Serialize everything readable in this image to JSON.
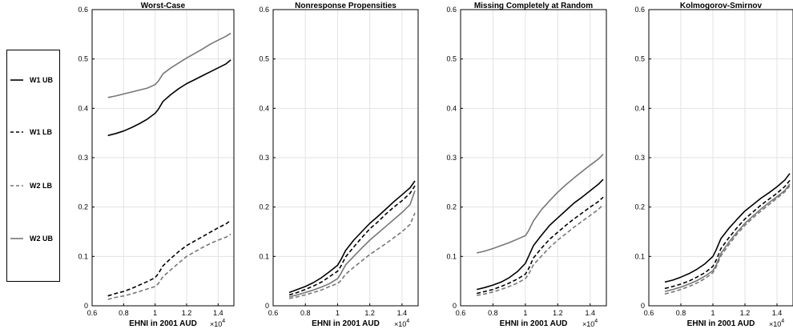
{
  "legend": {
    "entries": [
      {
        "label": "W1 UB",
        "color": "#000000",
        "dash": "solid"
      },
      {
        "label": "W1 LB",
        "color": "#000000",
        "dash": "dashed"
      },
      {
        "label": "W2 LB",
        "color": "#777777",
        "dash": "dashed"
      },
      {
        "label": "W2 UB",
        "color": "#777777",
        "dash": "solid"
      }
    ]
  },
  "chart_data": [
    {
      "type": "line",
      "title": "Worst-Case",
      "xlabel": "EHNI in 2001 AUD",
      "x_multiplier_base": "×10",
      "x_multiplier_exp": "4",
      "xlim": [
        0.6,
        1.5
      ],
      "ylim": [
        0,
        0.6
      ],
      "xticks": [
        0.6,
        0.8,
        1,
        1.2,
        1.4
      ],
      "yticks": [
        0,
        0.1,
        0.2,
        0.3,
        0.4,
        0.5,
        0.6
      ],
      "grid": true,
      "x": [
        0.7,
        0.75,
        0.8,
        0.85,
        0.9,
        0.95,
        1.0,
        1.02,
        1.05,
        1.1,
        1.15,
        1.2,
        1.25,
        1.3,
        1.35,
        1.4,
        1.45,
        1.48
      ],
      "series": [
        {
          "name": "W1 UB",
          "values": [
            0.345,
            0.349,
            0.354,
            0.361,
            0.369,
            0.378,
            0.39,
            0.398,
            0.414,
            0.428,
            0.44,
            0.45,
            0.458,
            0.466,
            0.474,
            0.482,
            0.49,
            0.498
          ]
        },
        {
          "name": "W1 LB",
          "values": [
            0.02,
            0.025,
            0.029,
            0.035,
            0.042,
            0.049,
            0.057,
            0.065,
            0.081,
            0.096,
            0.11,
            0.122,
            0.131,
            0.14,
            0.149,
            0.158,
            0.166,
            0.173
          ]
        },
        {
          "name": "W2 LB",
          "values": [
            0.013,
            0.017,
            0.02,
            0.024,
            0.029,
            0.034,
            0.039,
            0.045,
            0.059,
            0.073,
            0.087,
            0.1,
            0.109,
            0.118,
            0.126,
            0.133,
            0.139,
            0.145
          ]
        },
        {
          "name": "W2 UB",
          "values": [
            0.422,
            0.425,
            0.429,
            0.433,
            0.437,
            0.441,
            0.448,
            0.455,
            0.47,
            0.482,
            0.492,
            0.502,
            0.511,
            0.52,
            0.53,
            0.538,
            0.546,
            0.552
          ]
        }
      ]
    },
    {
      "type": "line",
      "title": "Nonresponse Propensities",
      "xlabel": "EHNI in 2001 AUD",
      "x_multiplier_base": "×10",
      "x_multiplier_exp": "4",
      "xlim": [
        0.6,
        1.5
      ],
      "ylim": [
        0,
        0.6
      ],
      "xticks": [
        0.6,
        0.8,
        1,
        1.2,
        1.4
      ],
      "yticks": [
        0,
        0.1,
        0.2,
        0.3,
        0.4,
        0.5,
        0.6
      ],
      "grid": true,
      "x": [
        0.7,
        0.75,
        0.8,
        0.85,
        0.9,
        0.95,
        1.0,
        1.02,
        1.05,
        1.1,
        1.15,
        1.2,
        1.25,
        1.3,
        1.35,
        1.4,
        1.45,
        1.48
      ],
      "series": [
        {
          "name": "W1 UB",
          "values": [
            0.027,
            0.033,
            0.039,
            0.047,
            0.057,
            0.069,
            0.082,
            0.093,
            0.112,
            0.133,
            0.15,
            0.167,
            0.181,
            0.196,
            0.211,
            0.225,
            0.239,
            0.253
          ]
        },
        {
          "name": "W1 LB",
          "values": [
            0.022,
            0.027,
            0.033,
            0.04,
            0.048,
            0.059,
            0.07,
            0.08,
            0.099,
            0.119,
            0.138,
            0.156,
            0.17,
            0.186,
            0.2,
            0.213,
            0.228,
            0.243
          ]
        },
        {
          "name": "W2 LB",
          "values": [
            0.015,
            0.018,
            0.022,
            0.027,
            0.032,
            0.039,
            0.045,
            0.051,
            0.064,
            0.078,
            0.091,
            0.104,
            0.115,
            0.126,
            0.138,
            0.15,
            0.165,
            0.188
          ]
        },
        {
          "name": "W2 UB",
          "values": [
            0.018,
            0.022,
            0.027,
            0.032,
            0.038,
            0.045,
            0.055,
            0.065,
            0.083,
            0.1,
            0.117,
            0.133,
            0.147,
            0.161,
            0.175,
            0.189,
            0.205,
            0.233
          ]
        }
      ]
    },
    {
      "type": "line",
      "title": "Missing Completely at Random",
      "xlabel": "EHNI in 2001 AUD",
      "x_multiplier_base": "×10",
      "x_multiplier_exp": "4",
      "xlim": [
        0.6,
        1.5
      ],
      "ylim": [
        0,
        0.6
      ],
      "xticks": [
        0.6,
        0.8,
        1,
        1.2,
        1.4
      ],
      "yticks": [
        0,
        0.1,
        0.2,
        0.3,
        0.4,
        0.5,
        0.6
      ],
      "grid": true,
      "x": [
        0.7,
        0.75,
        0.8,
        0.85,
        0.9,
        0.95,
        1.0,
        1.02,
        1.05,
        1.1,
        1.15,
        1.2,
        1.25,
        1.3,
        1.35,
        1.4,
        1.45,
        1.48
      ],
      "series": [
        {
          "name": "W1 UB",
          "values": [
            0.033,
            0.037,
            0.042,
            0.048,
            0.057,
            0.069,
            0.086,
            0.1,
            0.122,
            0.143,
            0.163,
            0.178,
            0.193,
            0.208,
            0.22,
            0.233,
            0.246,
            0.256
          ]
        },
        {
          "name": "W1 LB",
          "values": [
            0.025,
            0.029,
            0.033,
            0.039,
            0.046,
            0.054,
            0.064,
            0.075,
            0.097,
            0.117,
            0.135,
            0.149,
            0.163,
            0.176,
            0.188,
            0.2,
            0.211,
            0.22
          ]
        },
        {
          "name": "W2 LB",
          "values": [
            0.021,
            0.024,
            0.028,
            0.033,
            0.039,
            0.046,
            0.055,
            0.064,
            0.083,
            0.101,
            0.118,
            0.133,
            0.146,
            0.159,
            0.171,
            0.183,
            0.195,
            0.205
          ]
        },
        {
          "name": "W2 UB",
          "values": [
            0.107,
            0.111,
            0.116,
            0.122,
            0.128,
            0.135,
            0.142,
            0.152,
            0.172,
            0.195,
            0.213,
            0.23,
            0.245,
            0.259,
            0.272,
            0.285,
            0.297,
            0.307
          ]
        }
      ]
    },
    {
      "type": "line",
      "title": "Kolmogorov-Smirnov",
      "xlabel": "EHNI in 2001 AUD",
      "x_multiplier_base": "×10",
      "x_multiplier_exp": "4",
      "xlim": [
        0.6,
        1.5
      ],
      "ylim": [
        0,
        0.6
      ],
      "xticks": [
        0.6,
        0.8,
        1,
        1.2,
        1.4
      ],
      "yticks": [
        0,
        0.1,
        0.2,
        0.3,
        0.4,
        0.5,
        0.6
      ],
      "grid": true,
      "x": [
        0.7,
        0.75,
        0.8,
        0.85,
        0.9,
        0.95,
        1.0,
        1.02,
        1.05,
        1.1,
        1.15,
        1.2,
        1.25,
        1.3,
        1.35,
        1.4,
        1.45,
        1.48
      ],
      "series": [
        {
          "name": "W1 UB",
          "values": [
            0.048,
            0.052,
            0.058,
            0.065,
            0.074,
            0.085,
            0.1,
            0.113,
            0.136,
            0.157,
            0.175,
            0.192,
            0.205,
            0.218,
            0.229,
            0.241,
            0.255,
            0.268
          ]
        },
        {
          "name": "W1 LB",
          "values": [
            0.035,
            0.039,
            0.044,
            0.05,
            0.058,
            0.067,
            0.08,
            0.092,
            0.116,
            0.138,
            0.158,
            0.176,
            0.19,
            0.204,
            0.216,
            0.228,
            0.242,
            0.254
          ]
        },
        {
          "name": "W2 LB",
          "values": [
            0.024,
            0.028,
            0.033,
            0.039,
            0.046,
            0.055,
            0.067,
            0.078,
            0.101,
            0.124,
            0.145,
            0.163,
            0.178,
            0.192,
            0.205,
            0.218,
            0.231,
            0.243
          ]
        },
        {
          "name": "W2 UB",
          "values": [
            0.029,
            0.033,
            0.038,
            0.044,
            0.051,
            0.06,
            0.071,
            0.082,
            0.106,
            0.129,
            0.149,
            0.167,
            0.182,
            0.196,
            0.209,
            0.221,
            0.234,
            0.247
          ]
        }
      ]
    }
  ]
}
